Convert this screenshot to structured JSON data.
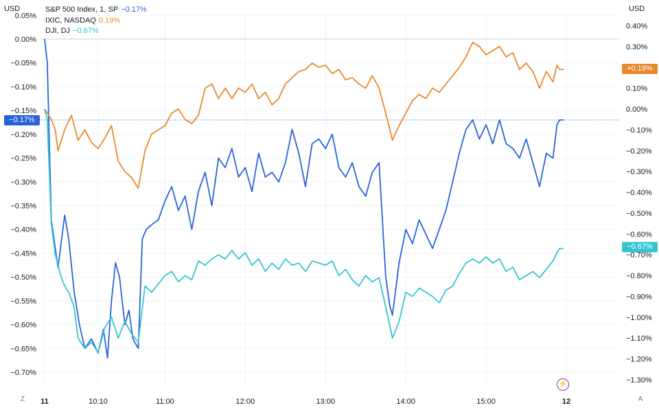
{
  "currency_left": "USD",
  "currency_right": "USD",
  "legend": [
    {
      "name": "S&P 500 Index, 1, SP",
      "value": "−0.17%",
      "color": "#2962d9"
    },
    {
      "name": "IXIC, NASDAQ",
      "value": "0.19%",
      "color": "#e8892b"
    },
    {
      "name": "DJI, DJ",
      "value": "−0.67%",
      "color": "#35c5cf"
    }
  ],
  "labels": {
    "left_current": "−0.17%",
    "right_ixic": "+0.19%",
    "right_dji": "−0.67%"
  },
  "buttons": {
    "left_corner": "Z",
    "right_corner": "A",
    "bolt": "⚡"
  },
  "chart_data": {
    "type": "line",
    "x_ticks": [
      "11",
      "10:10",
      "11:00",
      "12:00",
      "13:00",
      "14:00",
      "15:00",
      "12"
    ],
    "x_tick_times": [
      "09:30",
      "10:10",
      "11:00",
      "12:00",
      "13:00",
      "14:00",
      "15:00",
      "16:00"
    ],
    "left_axis": {
      "ticks": [
        "0.05%",
        "0.00%",
        "−0.05%",
        "−0.10%",
        "−0.15%",
        "−0.20%",
        "−0.25%",
        "−0.30%",
        "−0.35%",
        "−0.40%",
        "−0.45%",
        "−0.50%",
        "−0.55%",
        "−0.60%",
        "−0.65%",
        "−0.70%"
      ],
      "range": [
        -0.7,
        0.05
      ]
    },
    "right_axis": {
      "ticks": [
        "0.40%",
        "0.30%",
        "0.20%",
        "0.10%",
        "0.00%",
        "−0.10%",
        "−0.20%",
        "−0.30%",
        "−0.40%",
        "−0.50%",
        "−0.60%",
        "−0.70%",
        "−0.80%",
        "−0.90%",
        "−1.00%",
        "−1.10%",
        "−1.20%",
        "−1.30%"
      ],
      "range": [
        -1.3,
        0.4
      ]
    },
    "series": [
      {
        "name": "S&P 500 Index, 1, SP",
        "axis": "left",
        "color": "#2962d9",
        "points": [
          [
            "09:30",
            0.0
          ],
          [
            "09:32",
            -0.05
          ],
          [
            "09:35",
            -0.38
          ],
          [
            "09:40",
            -0.48
          ],
          [
            "09:45",
            -0.37
          ],
          [
            "09:48",
            -0.42
          ],
          [
            "09:52",
            -0.53
          ],
          [
            "09:56",
            -0.6
          ],
          [
            "10:00",
            -0.65
          ],
          [
            "10:05",
            -0.63
          ],
          [
            "10:10",
            -0.66
          ],
          [
            "10:14",
            -0.61
          ],
          [
            "10:17",
            -0.67
          ],
          [
            "10:20",
            -0.55
          ],
          [
            "10:23",
            -0.47
          ],
          [
            "10:26",
            -0.5
          ],
          [
            "10:30",
            -0.6
          ],
          [
            "10:33",
            -0.57
          ],
          [
            "10:36",
            -0.63
          ],
          [
            "10:40",
            -0.65
          ],
          [
            "10:43",
            -0.42
          ],
          [
            "10:46",
            -0.4
          ],
          [
            "10:50",
            -0.39
          ],
          [
            "10:55",
            -0.38
          ],
          [
            "11:00",
            -0.34
          ],
          [
            "11:05",
            -0.31
          ],
          [
            "11:10",
            -0.36
          ],
          [
            "11:15",
            -0.33
          ],
          [
            "11:20",
            -0.4
          ],
          [
            "11:25",
            -0.32
          ],
          [
            "11:30",
            -0.28
          ],
          [
            "11:35",
            -0.35
          ],
          [
            "11:40",
            -0.25
          ],
          [
            "11:45",
            -0.27
          ],
          [
            "11:50",
            -0.23
          ],
          [
            "11:55",
            -0.29
          ],
          [
            "12:00",
            -0.27
          ],
          [
            "12:05",
            -0.32
          ],
          [
            "12:10",
            -0.24
          ],
          [
            "12:15",
            -0.29
          ],
          [
            "12:20",
            -0.28
          ],
          [
            "12:25",
            -0.3
          ],
          [
            "12:30",
            -0.26
          ],
          [
            "12:35",
            -0.19
          ],
          [
            "12:40",
            -0.24
          ],
          [
            "12:45",
            -0.31
          ],
          [
            "12:50",
            -0.22
          ],
          [
            "12:55",
            -0.21
          ],
          [
            "13:00",
            -0.23
          ],
          [
            "13:05",
            -0.2
          ],
          [
            "13:10",
            -0.27
          ],
          [
            "13:15",
            -0.29
          ],
          [
            "13:20",
            -0.26
          ],
          [
            "13:25",
            -0.31
          ],
          [
            "13:30",
            -0.33
          ],
          [
            "13:35",
            -0.28
          ],
          [
            "13:40",
            -0.26
          ],
          [
            "13:45",
            -0.5
          ],
          [
            "13:48",
            -0.56
          ],
          [
            "13:50",
            -0.58
          ],
          [
            "13:55",
            -0.47
          ],
          [
            "14:00",
            -0.4
          ],
          [
            "14:05",
            -0.43
          ],
          [
            "14:10",
            -0.38
          ],
          [
            "14:15",
            -0.41
          ],
          [
            "14:20",
            -0.44
          ],
          [
            "14:25",
            -0.4
          ],
          [
            "14:30",
            -0.36
          ],
          [
            "14:35",
            -0.3
          ],
          [
            "14:40",
            -0.24
          ],
          [
            "14:45",
            -0.19
          ],
          [
            "14:50",
            -0.17
          ],
          [
            "14:55",
            -0.21
          ],
          [
            "15:00",
            -0.18
          ],
          [
            "15:05",
            -0.22
          ],
          [
            "15:10",
            -0.17
          ],
          [
            "15:15",
            -0.22
          ],
          [
            "15:20",
            -0.23
          ],
          [
            "15:25",
            -0.25
          ],
          [
            "15:30",
            -0.21
          ],
          [
            "15:35",
            -0.26
          ],
          [
            "15:40",
            -0.31
          ],
          [
            "15:45",
            -0.24
          ],
          [
            "15:50",
            -0.25
          ],
          [
            "15:53",
            -0.18
          ],
          [
            "15:55",
            -0.17
          ],
          [
            "15:58",
            -0.17
          ]
        ]
      },
      {
        "name": "IXIC, NASDAQ",
        "axis": "right",
        "color": "#e8892b",
        "points": [
          [
            "09:30",
            0.0
          ],
          [
            "09:32",
            -0.02
          ],
          [
            "09:35",
            -0.05
          ],
          [
            "09:38",
            -0.1
          ],
          [
            "09:40",
            -0.2
          ],
          [
            "09:45",
            -0.1
          ],
          [
            "09:50",
            -0.03
          ],
          [
            "09:55",
            -0.15
          ],
          [
            "10:00",
            -0.1
          ],
          [
            "10:05",
            -0.16
          ],
          [
            "10:10",
            -0.19
          ],
          [
            "10:15",
            -0.14
          ],
          [
            "10:20",
            -0.08
          ],
          [
            "10:25",
            -0.25
          ],
          [
            "10:30",
            -0.3
          ],
          [
            "10:35",
            -0.33
          ],
          [
            "10:40",
            -0.38
          ],
          [
            "10:45",
            -0.2
          ],
          [
            "10:50",
            -0.12
          ],
          [
            "11:00",
            -0.08
          ],
          [
            "11:05",
            -0.02
          ],
          [
            "11:10",
            0.0
          ],
          [
            "11:15",
            -0.05
          ],
          [
            "11:20",
            -0.07
          ],
          [
            "11:25",
            -0.03
          ],
          [
            "11:30",
            0.1
          ],
          [
            "11:35",
            0.12
          ],
          [
            "11:40",
            0.05
          ],
          [
            "11:45",
            0.1
          ],
          [
            "11:50",
            0.05
          ],
          [
            "11:55",
            0.1
          ],
          [
            "12:00",
            0.08
          ],
          [
            "12:05",
            0.12
          ],
          [
            "12:10",
            0.05
          ],
          [
            "12:15",
            0.08
          ],
          [
            "12:20",
            0.02
          ],
          [
            "12:25",
            0.05
          ],
          [
            "12:30",
            0.12
          ],
          [
            "12:35",
            0.15
          ],
          [
            "12:40",
            0.18
          ],
          [
            "12:45",
            0.19
          ],
          [
            "12:50",
            0.22
          ],
          [
            "12:55",
            0.2
          ],
          [
            "13:00",
            0.21
          ],
          [
            "13:05",
            0.17
          ],
          [
            "13:10",
            0.19
          ],
          [
            "13:15",
            0.14
          ],
          [
            "13:20",
            0.15
          ],
          [
            "13:25",
            0.12
          ],
          [
            "13:30",
            0.1
          ],
          [
            "13:35",
            0.16
          ],
          [
            "13:40",
            0.1
          ],
          [
            "13:45",
            -0.02
          ],
          [
            "13:50",
            -0.15
          ],
          [
            "13:55",
            -0.08
          ],
          [
            "14:00",
            -0.02
          ],
          [
            "14:05",
            0.04
          ],
          [
            "14:10",
            0.07
          ],
          [
            "14:15",
            0.05
          ],
          [
            "14:20",
            0.1
          ],
          [
            "14:25",
            0.08
          ],
          [
            "14:30",
            0.12
          ],
          [
            "14:35",
            0.16
          ],
          [
            "14:40",
            0.2
          ],
          [
            "14:45",
            0.25
          ],
          [
            "14:50",
            0.32
          ],
          [
            "14:55",
            0.3
          ],
          [
            "15:00",
            0.26
          ],
          [
            "15:05",
            0.28
          ],
          [
            "15:10",
            0.3
          ],
          [
            "15:15",
            0.25
          ],
          [
            "15:20",
            0.27
          ],
          [
            "15:25",
            0.19
          ],
          [
            "15:30",
            0.22
          ],
          [
            "15:35",
            0.18
          ],
          [
            "15:40",
            0.1
          ],
          [
            "15:45",
            0.18
          ],
          [
            "15:50",
            0.13
          ],
          [
            "15:53",
            0.21
          ],
          [
            "15:55",
            0.19
          ],
          [
            "15:58",
            0.19
          ]
        ]
      },
      {
        "name": "DJI, DJ",
        "axis": "right",
        "color": "#35c5cf",
        "points": [
          [
            "09:30",
            0.0
          ],
          [
            "09:32",
            -0.05
          ],
          [
            "09:35",
            -0.55
          ],
          [
            "09:38",
            -0.7
          ],
          [
            "09:42",
            -0.8
          ],
          [
            "09:45",
            -0.85
          ],
          [
            "09:48",
            -0.88
          ],
          [
            "09:52",
            -0.95
          ],
          [
            "09:55",
            -1.1
          ],
          [
            "10:00",
            -1.15
          ],
          [
            "10:05",
            -1.12
          ],
          [
            "10:10",
            -1.17
          ],
          [
            "10:15",
            -1.05
          ],
          [
            "10:20",
            -1.0
          ],
          [
            "10:25",
            -1.1
          ],
          [
            "10:30",
            -1.02
          ],
          [
            "10:35",
            -1.08
          ],
          [
            "10:40",
            -1.12
          ],
          [
            "10:45",
            -0.85
          ],
          [
            "10:50",
            -0.88
          ],
          [
            "11:00",
            -0.8
          ],
          [
            "11:05",
            -0.78
          ],
          [
            "11:10",
            -0.83
          ],
          [
            "11:15",
            -0.8
          ],
          [
            "11:20",
            -0.82
          ],
          [
            "11:25",
            -0.73
          ],
          [
            "11:30",
            -0.75
          ],
          [
            "11:35",
            -0.72
          ],
          [
            "11:40",
            -0.7
          ],
          [
            "11:45",
            -0.72
          ],
          [
            "11:50",
            -0.68
          ],
          [
            "11:55",
            -0.72
          ],
          [
            "12:00",
            -0.69
          ],
          [
            "12:05",
            -0.75
          ],
          [
            "12:10",
            -0.72
          ],
          [
            "12:15",
            -0.78
          ],
          [
            "12:20",
            -0.74
          ],
          [
            "12:25",
            -0.77
          ],
          [
            "12:30",
            -0.72
          ],
          [
            "12:35",
            -0.75
          ],
          [
            "12:40",
            -0.74
          ],
          [
            "12:45",
            -0.78
          ],
          [
            "12:50",
            -0.73
          ],
          [
            "12:55",
            -0.74
          ],
          [
            "13:00",
            -0.75
          ],
          [
            "13:05",
            -0.73
          ],
          [
            "13:10",
            -0.8
          ],
          [
            "13:15",
            -0.77
          ],
          [
            "13:20",
            -0.82
          ],
          [
            "13:25",
            -0.85
          ],
          [
            "13:30",
            -0.8
          ],
          [
            "13:35",
            -0.83
          ],
          [
            "13:40",
            -0.81
          ],
          [
            "13:45",
            -0.95
          ],
          [
            "13:50",
            -1.1
          ],
          [
            "13:55",
            -1.02
          ],
          [
            "14:00",
            -0.88
          ],
          [
            "14:05",
            -0.9
          ],
          [
            "14:10",
            -0.86
          ],
          [
            "14:15",
            -0.88
          ],
          [
            "14:20",
            -0.9
          ],
          [
            "14:25",
            -0.93
          ],
          [
            "14:30",
            -0.87
          ],
          [
            "14:35",
            -0.85
          ],
          [
            "14:40",
            -0.79
          ],
          [
            "14:45",
            -0.74
          ],
          [
            "14:50",
            -0.72
          ],
          [
            "14:55",
            -0.74
          ],
          [
            "15:00",
            -0.71
          ],
          [
            "15:05",
            -0.74
          ],
          [
            "15:10",
            -0.72
          ],
          [
            "15:15",
            -0.78
          ],
          [
            "15:20",
            -0.76
          ],
          [
            "15:25",
            -0.82
          ],
          [
            "15:30",
            -0.8
          ],
          [
            "15:35",
            -0.78
          ],
          [
            "15:40",
            -0.81
          ],
          [
            "15:45",
            -0.77
          ],
          [
            "15:50",
            -0.73
          ],
          [
            "15:53",
            -0.69
          ],
          [
            "15:55",
            -0.67
          ],
          [
            "15:58",
            -0.67
          ]
        ]
      }
    ],
    "current_value_line": {
      "series": "S&P 500 Index, 1, SP",
      "value": -0.17
    },
    "grid": true,
    "legend_position": "top-left"
  }
}
